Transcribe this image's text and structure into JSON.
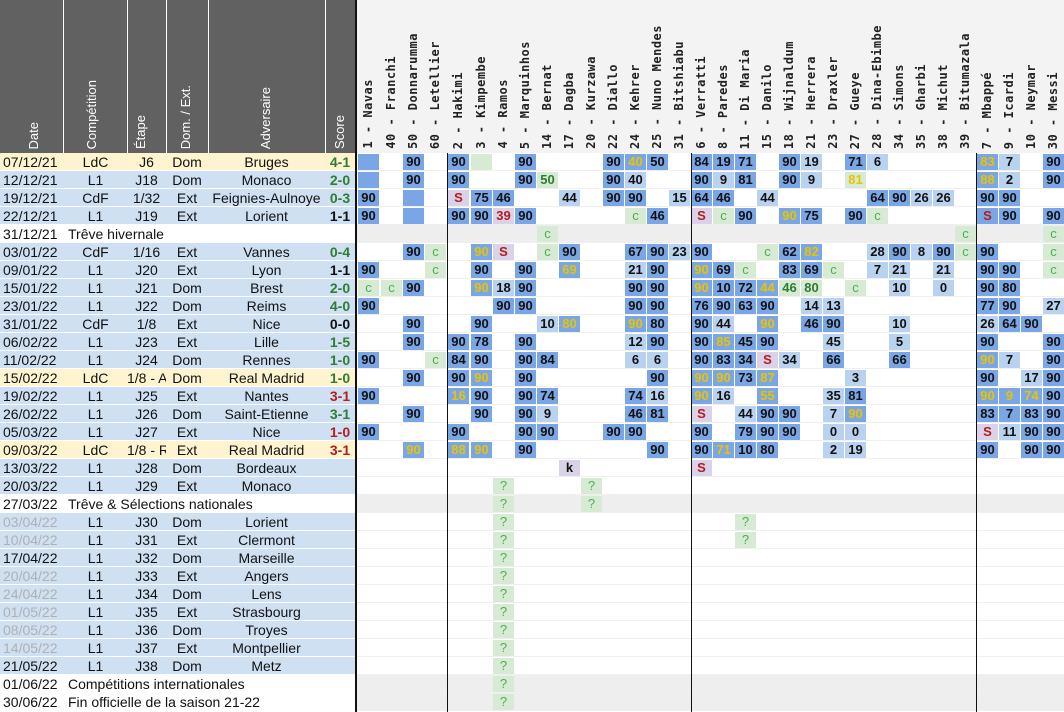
{
  "headers": {
    "date": "Date",
    "competition": "Compétition",
    "etape": "Étape",
    "domext": "Dom. / Ext.",
    "adversaire": "Adversaire",
    "score": "Score"
  },
  "players": [
    "1 - Navas",
    "40 - Franchi",
    "50 - Donnarumma",
    "60 - Letellier",
    "2 - Hakimi",
    "3 - Kimpembe",
    "4 - Ramos",
    "5 - Marquinhos",
    "14 - Bernat",
    "17 - Dagba",
    "20 - Kurzawa",
    "22 - Diallo",
    "24 - Kehrer",
    "25 - Nuno Mendes",
    "31 - Bitshiabu",
    "6 - Verratti",
    "8 - Paredes",
    "11 - Di Maria",
    "15 - Danilo",
    "18 - Wijnaldum",
    "21 - Herrera",
    "23 - Draxler",
    "27 - Gueye",
    "28 - Dina-Ebimbe",
    "34 - Simons",
    "35 - Gharbi",
    "38 - Michut",
    "39 - Bitumazala",
    "7 - Mbappé",
    "9 - Icardi",
    "10 - Neymar",
    "30 - Messi"
  ],
  "colors": {
    "blue": "#7aa6e6",
    "lightblue": "#b9d2ef",
    "green": "#d7ead3",
    "purple": "#d9d2e9",
    "yellow": "#fbeec3",
    "pink": "#f4c7c3",
    "gray": "#ebebeb",
    "win": "#2e7d32",
    "loss": "#b71c1c",
    "draw": "#111111",
    "ldc": "#fdebb3",
    "rowgray": "#eeeeee"
  },
  "rows": [
    {
      "date": "07/12/21",
      "comp": "LdC",
      "etape": "J6",
      "dom": "Dom",
      "adv": "Bruges",
      "score": "4-1",
      "res": "W",
      "type": "ldc",
      "cells": {
        "0": "b",
        "2": "b90",
        "4": "b90",
        "5": "g",
        "7": "b90",
        "11": "b90",
        "12": "by40",
        "13": "b50",
        "15": "b84",
        "16": "b19",
        "17": "b71",
        "19": "b90",
        "20": "l19",
        "22": "b71",
        "23": "l6",
        "28": "by83",
        "29": "l7",
        "31": "b90"
      }
    },
    {
      "date": "12/12/21",
      "comp": "L1",
      "etape": "J18",
      "dom": "Dom",
      "adv": "Monaco",
      "score": "2-0",
      "res": "W",
      "type": "l1",
      "cells": {
        "0": "b",
        "2": "b90",
        "4": "b90",
        "7": "b90",
        "8": "gg50",
        "11": "b90",
        "12": "l40",
        "15": "b90",
        "16": "l9",
        "17": "b81",
        "19": "b90",
        "20": "l9",
        "22": "gy81",
        "28": "by88",
        "29": "l2",
        "31": "b90"
      }
    },
    {
      "date": "19/12/21",
      "comp": "CdF",
      "etape": "1/32",
      "dom": "Ext",
      "adv": "Feignies-Aulnoye",
      "score": "0-3",
      "res": "W",
      "type": "l1",
      "cells": {
        "0": "b90",
        "2": "b",
        "4": "pS",
        "5": "b75",
        "6": "b46",
        "9": "l44",
        "11": "b90",
        "12": "b90",
        "14": "l15",
        "15": "b64",
        "16": "b46",
        "18": "l44",
        "23": "b64",
        "24": "b90",
        "25": "l26",
        "26": "l26",
        "28": "b90",
        "29": "b90"
      }
    },
    {
      "date": "22/12/21",
      "comp": "L1",
      "etape": "J19",
      "dom": "Ext",
      "adv": "Lorient",
      "score": "1-1",
      "res": "D",
      "type": "l1",
      "cells": {
        "0": "b90",
        "2": "b",
        "4": "b90",
        "5": "b90",
        "6": "pr39",
        "7": "b90",
        "12": "gc",
        "13": "b46",
        "15": "pS",
        "16": "gc",
        "17": "b90",
        "19": "by90",
        "20": "b75",
        "22": "b90",
        "23": "gc",
        "28": "bS",
        "29": "b90",
        "31": "b90"
      }
    },
    {
      "date": "31/12/21",
      "comp": "Trêve hivernale",
      "etape": "",
      "dom": "",
      "adv": "",
      "score": "",
      "res": "",
      "type": "break",
      "cells": {
        "8": "gc",
        "27": "gc",
        "31": "gc"
      }
    },
    {
      "date": "03/01/22",
      "comp": "CdF",
      "etape": "1/16",
      "dom": "Ext",
      "adv": "Vannes",
      "score": "0-4",
      "res": "W",
      "type": "l1",
      "cells": {
        "2": "b90",
        "3": "gc",
        "5": "by90",
        "6": "pS",
        "8": "gc",
        "9": "b90",
        "12": "b67",
        "13": "b90",
        "14": "l23",
        "15": "b90",
        "18": "gc",
        "19": "b62",
        "20": "by82",
        "23": "l28",
        "24": "b90",
        "25": "l8",
        "26": "b90",
        "27": "gc",
        "28": "b90",
        "31": "gc"
      }
    },
    {
      "date": "09/01/22",
      "comp": "L1",
      "etape": "J20",
      "dom": "Ext",
      "adv": "Lyon",
      "score": "1-1",
      "res": "D",
      "type": "l1",
      "cells": {
        "0": "b90",
        "3": "gc",
        "5": "b90",
        "7": "b90",
        "9": "by69",
        "12": "l21",
        "13": "b90",
        "15": "by90",
        "16": "b69",
        "17": "gc",
        "19": "b83",
        "20": "b69",
        "21": "gc",
        "23": "l7",
        "24": "l21",
        "26": "l21",
        "28": "b90",
        "29": "b90",
        "31": "gc"
      }
    },
    {
      "date": "15/01/22",
      "comp": "L1",
      "etape": "J21",
      "dom": "Dom",
      "adv": "Brest",
      "score": "2-0",
      "res": "W",
      "type": "l1",
      "cells": {
        "0": "gc",
        "1": "gc",
        "2": "b90",
        "5": "by90",
        "6": "l18",
        "7": "b90",
        "12": "b90",
        "13": "b90",
        "15": "by90",
        "16": "b10",
        "17": "b72",
        "18": "by44",
        "19": "gg46",
        "20": "gg80",
        "22": "gc",
        "24": "l10",
        "26": "l0",
        "28": "b90",
        "29": "b80"
      }
    },
    {
      "date": "23/01/22",
      "comp": "L1",
      "etape": "J22",
      "dom": "Dom",
      "adv": "Reims",
      "score": "4-0",
      "res": "W",
      "type": "l1",
      "cells": {
        "0": "b90",
        "6": "b90",
        "7": "b90",
        "12": "b90",
        "13": "b90",
        "15": "b76",
        "16": "b90",
        "17": "b63",
        "18": "b90",
        "20": "l14",
        "21": "l13",
        "28": "b77",
        "29": "b90",
        "31": "l27"
      }
    },
    {
      "date": "31/01/22",
      "comp": "CdF",
      "etape": "1/8",
      "dom": "Ext",
      "adv": "Nice",
      "score": "0-0",
      "res": "D",
      "type": "l1",
      "cells": {
        "2": "b90",
        "5": "b90",
        "8": "l10",
        "9": "by80",
        "12": "by90",
        "13": "b80",
        "15": "b90",
        "16": "l44",
        "18": "by90",
        "20": "b46",
        "21": "b90",
        "24": "l10",
        "28": "l26",
        "29": "b64",
        "30": "b90"
      }
    },
    {
      "date": "06/02/22",
      "comp": "L1",
      "etape": "J23",
      "dom": "Ext",
      "adv": "Lille",
      "score": "1-5",
      "res": "W",
      "type": "l1",
      "cells": {
        "2": "b90",
        "4": "b90",
        "5": "b78",
        "7": "b90",
        "12": "l12",
        "13": "b90",
        "15": "b90",
        "16": "by85",
        "17": "b45",
        "18": "b90",
        "21": "l45",
        "24": "l5",
        "28": "b90",
        "31": "b90"
      }
    },
    {
      "date": "11/02/22",
      "comp": "L1",
      "etape": "J24",
      "dom": "Dom",
      "adv": "Rennes",
      "score": "1-0",
      "res": "W",
      "type": "l1",
      "cells": {
        "0": "b90",
        "3": "gc",
        "4": "b84",
        "5": "b90",
        "7": "b90",
        "8": "b84",
        "12": "l6",
        "13": "l6",
        "15": "b90",
        "16": "b83",
        "17": "b34",
        "18": "pS",
        "19": "l34",
        "21": "b66",
        "24": "b66",
        "28": "by90",
        "29": "l7",
        "31": "b90"
      }
    },
    {
      "date": "15/02/22",
      "comp": "LdC",
      "etape": "1/8 - A",
      "dom": "Dom",
      "adv": "Real Madrid",
      "score": "1-0",
      "res": "W",
      "type": "ldc",
      "cells": {
        "2": "b90",
        "4": "b90",
        "5": "by90",
        "7": "b90",
        "13": "b90",
        "15": "by90",
        "16": "by90",
        "17": "b73",
        "18": "by87",
        "22": "l3",
        "28": "b90",
        "30": "l17",
        "31": "b90"
      }
    },
    {
      "date": "19/02/22",
      "comp": "L1",
      "etape": "J25",
      "dom": "Ext",
      "adv": "Nantes",
      "score": "3-1",
      "res": "L",
      "type": "l1",
      "cells": {
        "0": "b90",
        "4": "by16",
        "5": "b90",
        "7": "b90",
        "8": "b74",
        "12": "b74",
        "13": "l16",
        "15": "by90",
        "16": "l16",
        "18": "by55",
        "21": "l35",
        "22": "b81",
        "28": "by90",
        "29": "by9",
        "30": "by74",
        "31": "b90"
      }
    },
    {
      "date": "26/02/22",
      "comp": "L1",
      "etape": "J26",
      "dom": "Dom",
      "adv": "Saint-Etienne",
      "score": "3-1",
      "res": "W",
      "type": "l1",
      "cells": {
        "2": "b90",
        "5": "b90",
        "7": "b90",
        "8": "l9",
        "12": "b46",
        "13": "b81",
        "15": "pS",
        "17": "l44",
        "18": "b90",
        "19": "b90",
        "21": "l7",
        "22": "by90",
        "28": "b83",
        "29": "b7",
        "30": "b83",
        "31": "b90"
      }
    },
    {
      "date": "05/03/22",
      "comp": "L1",
      "etape": "J27",
      "dom": "Ext",
      "adv": "Nice",
      "score": "1-0",
      "res": "L",
      "type": "l1",
      "cells": {
        "0": "b90",
        "4": "b90",
        "7": "b90",
        "8": "b90",
        "11": "b90",
        "12": "b90",
        "15": "b90",
        "17": "b79",
        "18": "b90",
        "19": "b90",
        "21": "l0",
        "22": "l0",
        "28": "pS",
        "29": "l11",
        "30": "b90",
        "31": "b90"
      }
    },
    {
      "date": "09/03/22",
      "comp": "LdC",
      "etape": "1/8 - R",
      "dom": "Ext",
      "adv": "Real Madrid",
      "score": "3-1",
      "res": "L",
      "type": "ldc",
      "cells": {
        "2": "by90",
        "4": "by88",
        "5": "by90",
        "7": "b90",
        "13": "b90",
        "15": "b90",
        "16": "by71",
        "17": "b10",
        "18": "b80",
        "21": "l2",
        "22": "l19",
        "28": "b90",
        "30": "b90",
        "31": "b90"
      }
    },
    {
      "date": "13/03/22",
      "comp": "L1",
      "etape": "J28",
      "dom": "Dom",
      "adv": "Bordeaux",
      "score": "",
      "res": "",
      "type": "l1",
      "cells": {
        "9": "pk",
        "15": "pS"
      }
    },
    {
      "date": "20/03/22",
      "comp": "L1",
      "etape": "J29",
      "dom": "Ext",
      "adv": "Monaco",
      "score": "",
      "res": "",
      "type": "l1",
      "cells": {
        "6": "g?",
        "10": "g?"
      }
    },
    {
      "date": "27/03/22",
      "comp": "Trêve & Sélections nationales",
      "etape": "",
      "dom": "",
      "adv": "",
      "score": "",
      "res": "",
      "type": "break",
      "cells": {
        "6": "g?",
        "10": "g?"
      }
    },
    {
      "date": "03/04/22",
      "comp": "L1",
      "etape": "J30",
      "dom": "Dom",
      "adv": "Lorient",
      "score": "",
      "res": "",
      "type": "l1f",
      "cells": {
        "6": "g?",
        "17": "g?"
      }
    },
    {
      "date": "10/04/22",
      "comp": "L1",
      "etape": "J31",
      "dom": "Ext",
      "adv": "Clermont",
      "score": "",
      "res": "",
      "type": "l1f",
      "cells": {
        "6": "g?",
        "17": "g?"
      }
    },
    {
      "date": "17/04/22",
      "comp": "L1",
      "etape": "J32",
      "dom": "Dom",
      "adv": "Marseille",
      "score": "",
      "res": "",
      "type": "l1",
      "cells": {
        "6": "g?"
      }
    },
    {
      "date": "20/04/22",
      "comp": "L1",
      "etape": "J33",
      "dom": "Ext",
      "adv": "Angers",
      "score": "",
      "res": "",
      "type": "l1f",
      "cells": {
        "6": "g?"
      }
    },
    {
      "date": "24/04/22",
      "comp": "L1",
      "etape": "J34",
      "dom": "Dom",
      "adv": "Lens",
      "score": "",
      "res": "",
      "type": "l1f",
      "cells": {
        "6": "g?"
      }
    },
    {
      "date": "01/05/22",
      "comp": "L1",
      "etape": "J35",
      "dom": "Ext",
      "adv": "Strasbourg",
      "score": "",
      "res": "",
      "type": "l1f",
      "cells": {
        "6": "g?"
      }
    },
    {
      "date": "08/05/22",
      "comp": "L1",
      "etape": "J36",
      "dom": "Dom",
      "adv": "Troyes",
      "score": "",
      "res": "",
      "type": "l1f",
      "cells": {
        "6": "g?"
      }
    },
    {
      "date": "14/05/22",
      "comp": "L1",
      "etape": "J37",
      "dom": "Ext",
      "adv": "Montpellier",
      "score": "",
      "res": "",
      "type": "l1f",
      "cells": {
        "6": "g?"
      }
    },
    {
      "date": "21/05/22",
      "comp": "L1",
      "etape": "J38",
      "dom": "Dom",
      "adv": "Metz",
      "score": "",
      "res": "",
      "type": "l1",
      "cells": {
        "6": "g?"
      }
    },
    {
      "date": "01/06/22",
      "comp": "Compétitions internationales",
      "etape": "",
      "dom": "",
      "adv": "",
      "score": "",
      "res": "",
      "type": "break",
      "cells": {
        "6": "g?"
      }
    },
    {
      "date": "30/06/22",
      "comp": "Fin officielle de la saison 21-22",
      "etape": "",
      "dom": "",
      "adv": "",
      "score": "",
      "res": "",
      "type": "break",
      "cells": {
        "6": "g?"
      }
    }
  ]
}
